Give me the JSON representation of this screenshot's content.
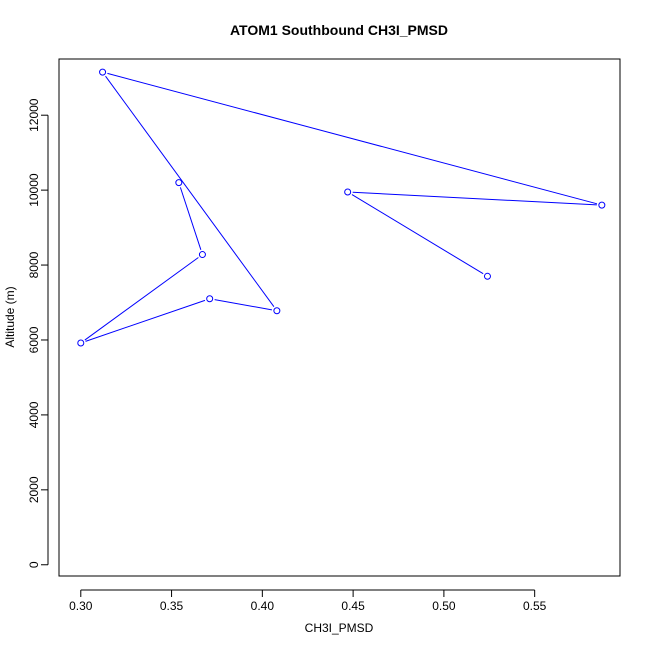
{
  "chart_data": {
    "type": "line",
    "title": "ATOM1 Southbound CH3I_PMSD",
    "xlabel": "CH3I_PMSD",
    "ylabel": "Altitude (m)",
    "xlim": [
      0.288,
      0.597
    ],
    "ylim": [
      -300,
      13500
    ],
    "x_ticks": [
      0.3,
      0.35,
      0.4,
      0.45,
      0.5,
      0.55
    ],
    "x_tick_labels": [
      "0.30",
      "0.35",
      "0.40",
      "0.45",
      "0.50",
      "0.55"
    ],
    "y_ticks": [
      0,
      2000,
      4000,
      6000,
      8000,
      10000,
      12000
    ],
    "y_tick_labels": [
      "0",
      "2000",
      "4000",
      "6000",
      "8000",
      "10000",
      "12000"
    ],
    "grid": false,
    "series": [
      {
        "color": "#0000ff",
        "marker": "open-circle",
        "x": [
          0.524,
          0.447,
          0.587,
          0.312,
          0.408,
          0.371,
          0.3,
          0.367,
          0.354
        ],
        "y": [
          7700,
          9950,
          9600,
          13150,
          6780,
          7100,
          5920,
          8280,
          10200
        ]
      }
    ]
  }
}
